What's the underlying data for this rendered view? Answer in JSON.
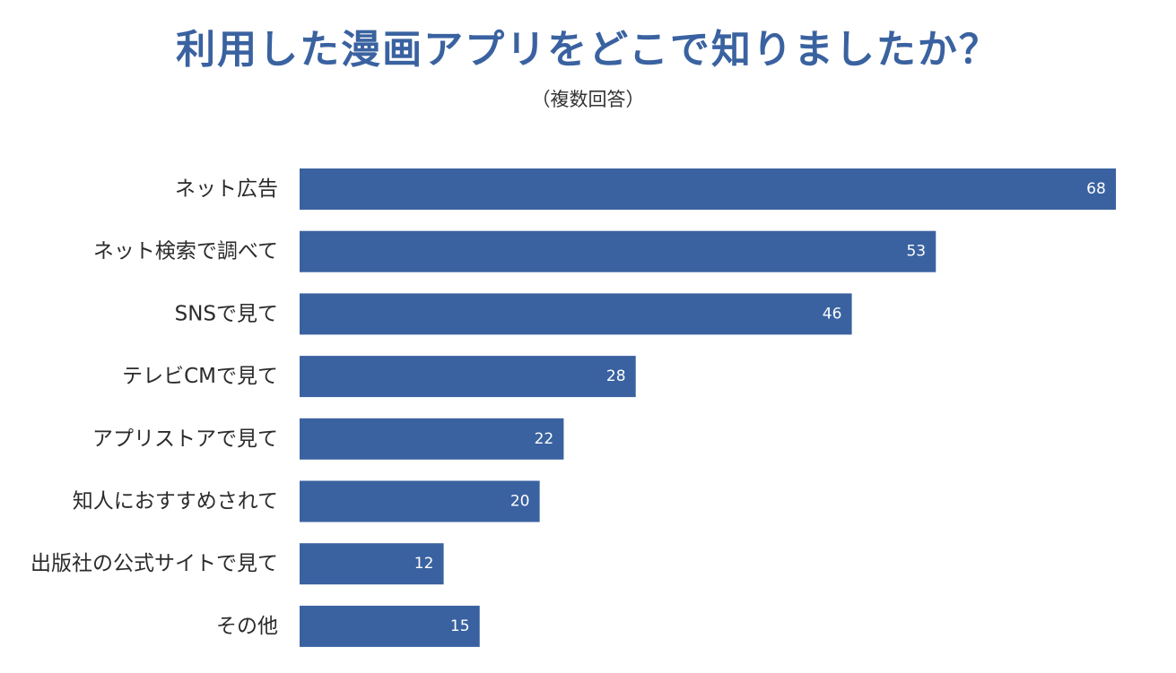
{
  "chart_data": {
    "type": "bar",
    "orientation": "horizontal",
    "title": "利用した漫画アプリをどこで知りましたか？",
    "subtitle": "（複数回答）",
    "categories": [
      "ネット広告",
      "ネット検索で調べて",
      "SNSで見て",
      "テレビCMで見て",
      "アプリストアで見て",
      "知人におすすめされて",
      "出版社の公式サイトで見て",
      "その他"
    ],
    "values": [
      68,
      53,
      46,
      28,
      22,
      20,
      12,
      15
    ],
    "xlim": [
      0,
      68
    ],
    "grid": false,
    "legend": "none",
    "bar_color": "#3a62a0",
    "title_color": "#3a62a0"
  }
}
